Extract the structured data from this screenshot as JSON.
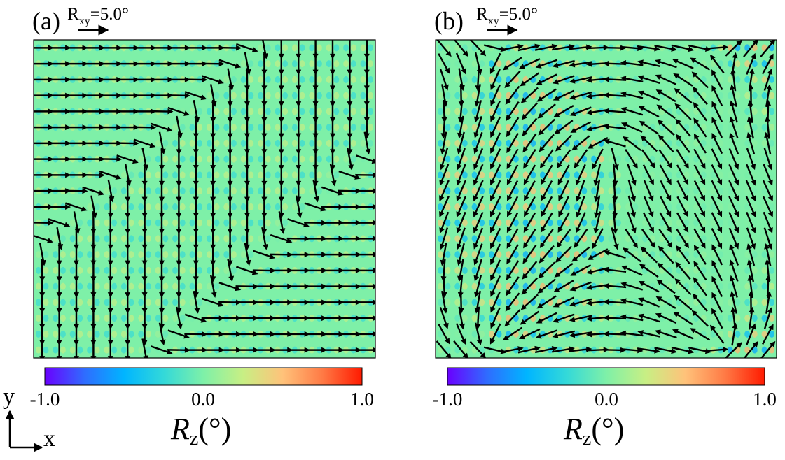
{
  "panels": [
    {
      "label": "(a)",
      "reference": {
        "symbol": "R",
        "subscript": "xy",
        "value_text": "=5.0°",
        "value_deg": 5.0
      },
      "pattern": "diagonal-domain-walls",
      "colorbar": {
        "ticks": [
          "-1.0",
          "0.0",
          "1.0"
        ],
        "range": [
          -1.0,
          1.0
        ]
      }
    },
    {
      "label": "(b)",
      "reference": {
        "symbol": "R",
        "subscript": "xy",
        "value_text": "=5.0°",
        "value_deg": 5.0
      },
      "pattern": "vortex-lattice",
      "colorbar": {
        "ticks": [
          "-1.0",
          "0.0",
          "1.0"
        ],
        "range": [
          -1.0,
          1.0
        ]
      }
    }
  ],
  "colorbar_title": {
    "symbol": "R",
    "subscript": "z",
    "unit": "(°)"
  },
  "colormap": [
    "#6a00ff",
    "#2f6cff",
    "#00b5ff",
    "#33d9d9",
    "#7ef0a8",
    "#c8ef84",
    "#ffc27a",
    "#ff7a45",
    "#ff1a00"
  ],
  "axes_indicator": {
    "y": "y",
    "x": "x"
  },
  "chart_data": [
    {
      "type": "quiver",
      "title": "(a)",
      "field": "in-plane rotation R_xy (arrows) over out-of-plane rotation R_z (color map)",
      "arrow_grid": [
        20,
        20
      ],
      "reference_arrow_deg": 5.0,
      "color_range": [
        -1.0,
        1.0
      ],
      "colorbar_label": "R_z (°)"
    },
    {
      "type": "quiver",
      "title": "(b)",
      "field": "in-plane rotation R_xy (arrows) over out-of-plane rotation R_z (color map)",
      "arrow_grid": [
        20,
        20
      ],
      "reference_arrow_deg": 5.0,
      "color_range": [
        -1.0,
        1.0
      ],
      "colorbar_label": "R_z (°)"
    }
  ]
}
